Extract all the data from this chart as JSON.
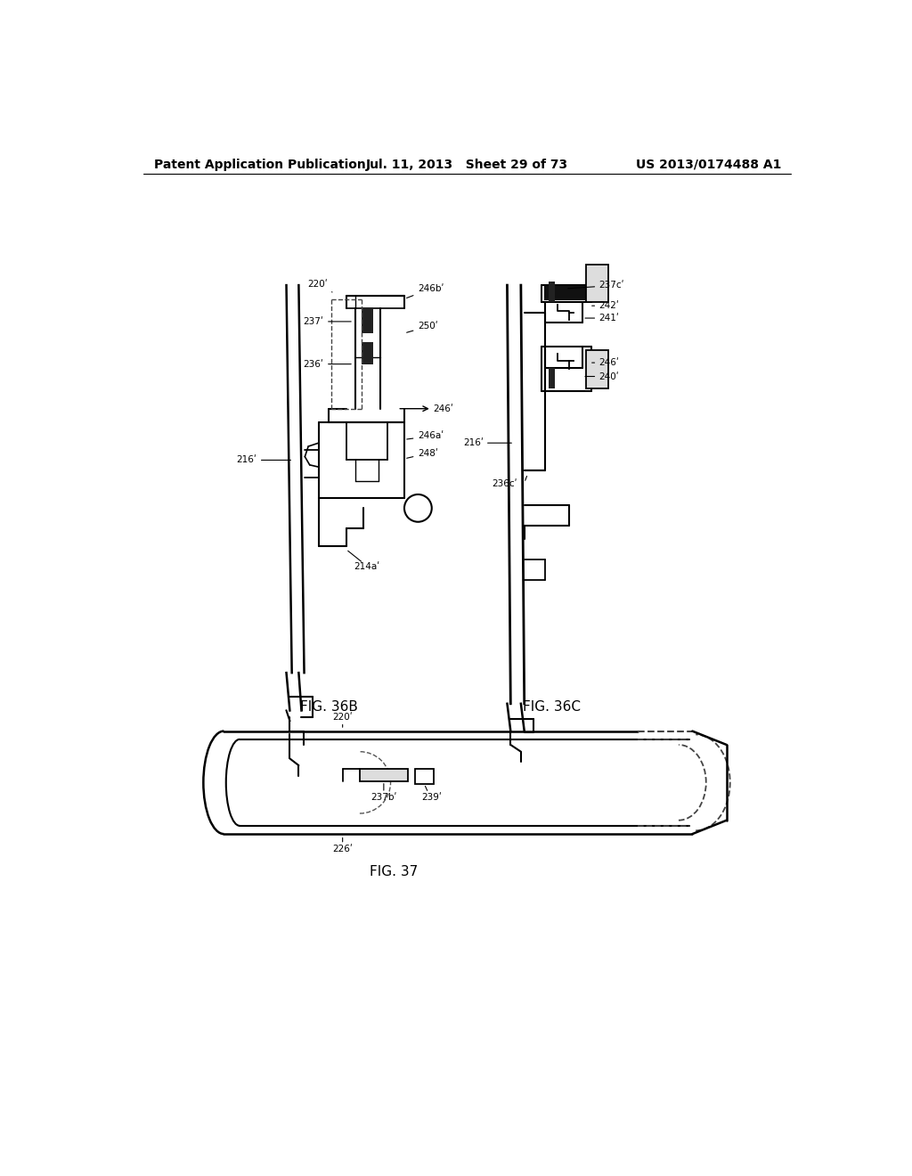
{
  "bg_color": "#ffffff",
  "header_left": "Patent Application Publication",
  "header_mid": "Jul. 11, 2013   Sheet 29 of 73",
  "header_right": "US 2013/0174488 A1",
  "fig36b_label": "FIG. 36B",
  "fig36c_label": "FIG. 36C",
  "fig37_label": "FIG. 37",
  "font_size_header": 10,
  "font_size_label": 11,
  "font_size_annot": 8
}
